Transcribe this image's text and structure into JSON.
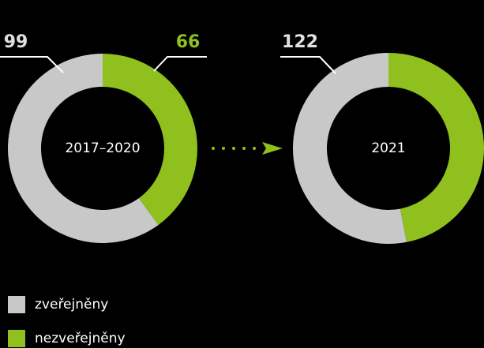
{
  "chart_data": [
    {
      "type": "donut",
      "center_label": "2017–2020",
      "values": [
        99,
        66
      ],
      "show_labels": [
        true,
        true
      ]
    },
    {
      "type": "donut",
      "center_label": "2021",
      "values": [
        122,
        108
      ],
      "show_labels": [
        true,
        false
      ]
    }
  ],
  "legend": [
    {
      "name": "zveřejněny",
      "color": "#c8c8c8"
    },
    {
      "name": "nezveřejněny",
      "color": "#8fc01e"
    }
  ]
}
